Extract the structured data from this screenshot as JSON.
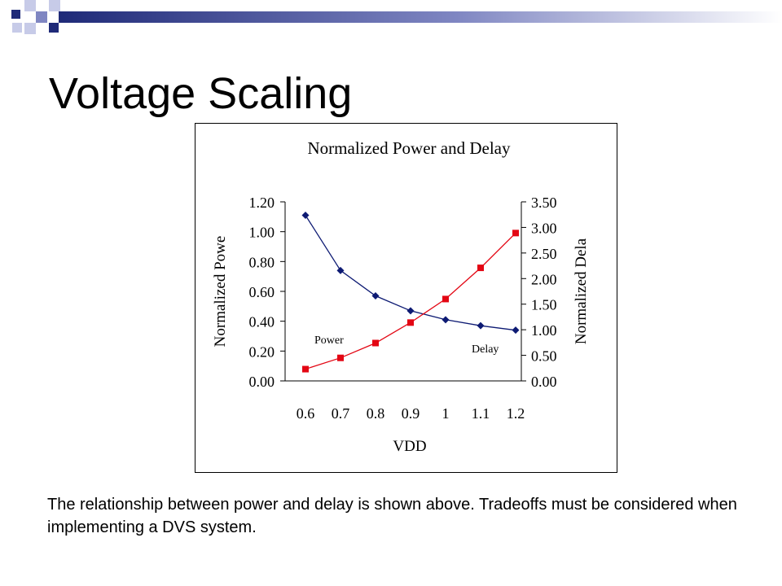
{
  "slide": {
    "title": "Voltage Scaling",
    "caption": "The relationship between power and delay is shown above.  Tradeoffs must be considered when implementing a DVS system."
  },
  "theme": {
    "accent_dark": "#1f2a78",
    "accent_mid": "#7f86c2",
    "accent_light": "#c7cbe8",
    "power_color": "#0d1a73",
    "delay_color": "#e30613"
  },
  "chart_data": {
    "type": "line",
    "title": "Normalized Power and Delay",
    "xlabel": "VDD",
    "ylabel_left": "Normalized Powe",
    "ylabel_right": "Normalized Dela",
    "categories": [
      "0.6",
      "0.7",
      "0.8",
      "0.9",
      "1",
      "1.1",
      "1.2"
    ],
    "y_left": {
      "range": [
        0,
        1.2
      ],
      "ticks": [
        "0.00",
        "0.20",
        "0.40",
        "0.60",
        "0.80",
        "1.00",
        "1.20"
      ]
    },
    "y_right": {
      "range": [
        0,
        3.5
      ],
      "ticks": [
        "0.00",
        "0.50",
        "1.00",
        "1.50",
        "2.00",
        "2.50",
        "3.00",
        "3.50"
      ]
    },
    "series": [
      {
        "name": "Power",
        "axis": "left",
        "marker": "diamond",
        "color": "#0d1a73",
        "values": [
          1.11,
          0.74,
          0.57,
          0.47,
          0.41,
          0.37,
          0.34
        ]
      },
      {
        "name": "Delay",
        "axis": "right",
        "marker": "square",
        "color": "#e30613",
        "values": [
          0.23,
          0.45,
          0.74,
          1.14,
          1.6,
          2.21,
          2.89
        ]
      }
    ],
    "annotations": [
      {
        "text": "Power",
        "near_series": "Power"
      },
      {
        "text": "Delay",
        "near_series": "Delay"
      }
    ],
    "grid": false,
    "legend": "none"
  }
}
